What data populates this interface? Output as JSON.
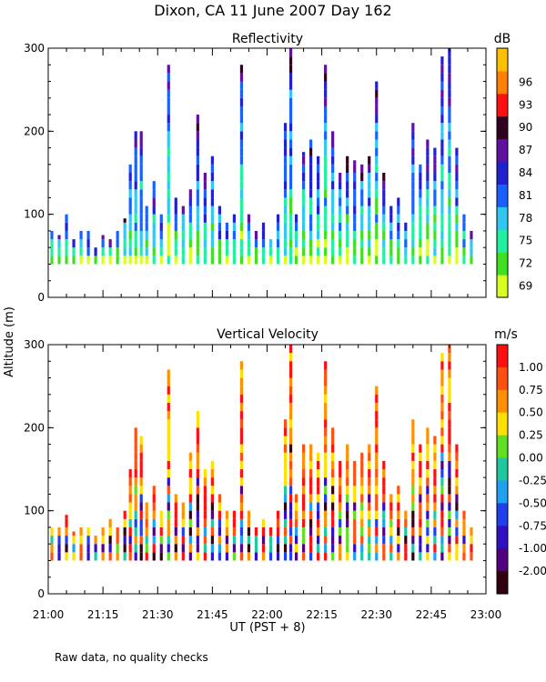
{
  "chart_data": {
    "title": "Dixon, CA 11 June 2007  Day 162",
    "ylabel": "Altitude (m)",
    "xlabel": "UT  (PST + 8)",
    "footnote": "Raw data, no quality checks",
    "x_ticks": [
      "21:00",
      "21:15",
      "21:30",
      "21:45",
      "22:00",
      "22:15",
      "22:30",
      "22:45",
      "23:00"
    ],
    "xlim": [
      0,
      120
    ],
    "panels": [
      {
        "type": "heatmap",
        "title": "Reflectivity",
        "unit": "dB",
        "ylim": [
          0,
          300
        ],
        "y_ticks": [
          "0",
          "100",
          "200",
          "300"
        ],
        "colorbar": {
          "labels": [
            "69",
            "72",
            "75",
            "78",
            "81",
            "84",
            "87",
            "90",
            "93",
            "96"
          ],
          "colors": [
            "#d8ff20",
            "#40e020",
            "#20f0a0",
            "#30c8f0",
            "#1860ff",
            "#2020d0",
            "#6010a0",
            "#300020",
            "#ff1010",
            "#ff8000",
            "#ffc000"
          ]
        },
        "columns": [
          {
            "t": 1,
            "h": [
              40,
              80
            ]
          },
          {
            "t": 3,
            "h": [
              40,
              75
            ]
          },
          {
            "t": 5,
            "h": [
              40,
              100
            ]
          },
          {
            "t": 7,
            "h": [
              40,
              70
            ]
          },
          {
            "t": 9,
            "h": [
              40,
              80
            ]
          },
          {
            "t": 11,
            "h": [
              40,
              80
            ]
          },
          {
            "t": 13,
            "h": [
              40,
              60
            ]
          },
          {
            "t": 15,
            "h": [
              40,
              75
            ]
          },
          {
            "t": 17,
            "h": [
              40,
              70
            ]
          },
          {
            "t": 19,
            "h": [
              40,
              80
            ]
          },
          {
            "t": 21,
            "h": [
              40,
              95
            ]
          },
          {
            "t": 22.5,
            "h": [
              40,
              160
            ]
          },
          {
            "t": 24,
            "h": [
              40,
              200
            ]
          },
          {
            "t": 25.5,
            "h": [
              40,
              200
            ]
          },
          {
            "t": 27,
            "h": [
              40,
              110
            ]
          },
          {
            "t": 29,
            "h": [
              40,
              140
            ]
          },
          {
            "t": 31,
            "h": [
              40,
              100
            ]
          },
          {
            "t": 33,
            "h": [
              40,
              280
            ]
          },
          {
            "t": 35,
            "h": [
              40,
              120
            ]
          },
          {
            "t": 37,
            "h": [
              40,
              110
            ]
          },
          {
            "t": 39,
            "h": [
              40,
              130
            ]
          },
          {
            "t": 41,
            "h": [
              40,
              220
            ]
          },
          {
            "t": 43,
            "h": [
              40,
              150
            ]
          },
          {
            "t": 45,
            "h": [
              40,
              170
            ]
          },
          {
            "t": 47,
            "h": [
              40,
              110
            ]
          },
          {
            "t": 49,
            "h": [
              40,
              90
            ]
          },
          {
            "t": 51,
            "h": [
              40,
              100
            ]
          },
          {
            "t": 53,
            "h": [
              40,
              280
            ]
          },
          {
            "t": 55,
            "h": [
              40,
              100
            ]
          },
          {
            "t": 57,
            "h": [
              40,
              80
            ]
          },
          {
            "t": 59,
            "h": [
              40,
              90
            ]
          },
          {
            "t": 61,
            "h": [
              40,
              70
            ]
          },
          {
            "t": 63,
            "h": [
              40,
              100
            ]
          },
          {
            "t": 65,
            "h": [
              40,
              210
            ]
          },
          {
            "t": 66.5,
            "h": [
              40,
              300
            ]
          },
          {
            "t": 68,
            "h": [
              40,
              100
            ]
          },
          {
            "t": 70,
            "h": [
              40,
              175
            ]
          },
          {
            "t": 72,
            "h": [
              40,
              190
            ]
          },
          {
            "t": 74,
            "h": [
              40,
              170
            ]
          },
          {
            "t": 76,
            "h": [
              40,
              280
            ]
          },
          {
            "t": 78,
            "h": [
              40,
              200
            ]
          },
          {
            "t": 80,
            "h": [
              40,
              150
            ]
          },
          {
            "t": 82,
            "h": [
              40,
              170
            ]
          },
          {
            "t": 84,
            "h": [
              40,
              165
            ]
          },
          {
            "t": 86,
            "h": [
              40,
              160
            ]
          },
          {
            "t": 88,
            "h": [
              40,
              170
            ]
          },
          {
            "t": 90,
            "h": [
              40,
              260
            ]
          },
          {
            "t": 92,
            "h": [
              40,
              150
            ]
          },
          {
            "t": 94,
            "h": [
              40,
              110
            ]
          },
          {
            "t": 96,
            "h": [
              40,
              120
            ]
          },
          {
            "t": 98,
            "h": [
              40,
              90
            ]
          },
          {
            "t": 100,
            "h": [
              40,
              210
            ]
          },
          {
            "t": 102,
            "h": [
              40,
              160
            ]
          },
          {
            "t": 104,
            "h": [
              40,
              190
            ]
          },
          {
            "t": 106,
            "h": [
              40,
              180
            ]
          },
          {
            "t": 108,
            "h": [
              40,
              290
            ]
          },
          {
            "t": 110,
            "h": [
              40,
              300
            ]
          },
          {
            "t": 112,
            "h": [
              40,
              180
            ]
          },
          {
            "t": 114,
            "h": [
              40,
              100
            ]
          },
          {
            "t": 116,
            "h": [
              40,
              80
            ]
          }
        ]
      },
      {
        "type": "heatmap",
        "title": "Vertical Velocity",
        "unit": "m/s",
        "ylim": [
          0,
          300
        ],
        "y_ticks": [
          "0",
          "100",
          "200",
          "300"
        ],
        "colorbar": {
          "labels": [
            "1.00",
            "0.75",
            "0.50",
            "0.25",
            "0.00",
            "-0.25",
            "-0.50",
            "-0.75",
            "-1.00",
            "-2.00"
          ],
          "colors": [
            "#ff1010",
            "#ff5010",
            "#ff9000",
            "#ffe000",
            "#60e020",
            "#20c8a0",
            "#20a0f0",
            "#2040f0",
            "#3010c0",
            "#500080",
            "#300010"
          ]
        },
        "columns": [
          {
            "t": 1,
            "h": [
              40,
              80
            ]
          },
          {
            "t": 3,
            "h": [
              40,
              80
            ]
          },
          {
            "t": 5,
            "h": [
              40,
              95
            ]
          },
          {
            "t": 7,
            "h": [
              40,
              75
            ]
          },
          {
            "t": 9,
            "h": [
              40,
              80
            ]
          },
          {
            "t": 11,
            "h": [
              40,
              80
            ]
          },
          {
            "t": 13,
            "h": [
              40,
              70
            ]
          },
          {
            "t": 15,
            "h": [
              40,
              80
            ]
          },
          {
            "t": 17,
            "h": [
              40,
              90
            ]
          },
          {
            "t": 19,
            "h": [
              40,
              80
            ]
          },
          {
            "t": 21,
            "h": [
              40,
              100
            ]
          },
          {
            "t": 22.5,
            "h": [
              40,
              150
            ]
          },
          {
            "t": 24,
            "h": [
              40,
              200
            ]
          },
          {
            "t": 25.5,
            "h": [
              40,
              190
            ]
          },
          {
            "t": 27,
            "h": [
              40,
              110
            ]
          },
          {
            "t": 29,
            "h": [
              40,
              130
            ]
          },
          {
            "t": 31,
            "h": [
              40,
              100
            ]
          },
          {
            "t": 33,
            "h": [
              40,
              270
            ]
          },
          {
            "t": 35,
            "h": [
              40,
              120
            ]
          },
          {
            "t": 37,
            "h": [
              40,
              110
            ]
          },
          {
            "t": 39,
            "h": [
              40,
              170
            ]
          },
          {
            "t": 41,
            "h": [
              40,
              220
            ]
          },
          {
            "t": 43,
            "h": [
              40,
              150
            ]
          },
          {
            "t": 45,
            "h": [
              40,
              160
            ]
          },
          {
            "t": 47,
            "h": [
              40,
              120
            ]
          },
          {
            "t": 49,
            "h": [
              40,
              100
            ]
          },
          {
            "t": 51,
            "h": [
              40,
              100
            ]
          },
          {
            "t": 53,
            "h": [
              40,
              280
            ]
          },
          {
            "t": 55,
            "h": [
              40,
              100
            ]
          },
          {
            "t": 57,
            "h": [
              40,
              80
            ]
          },
          {
            "t": 59,
            "h": [
              40,
              90
            ]
          },
          {
            "t": 61,
            "h": [
              40,
              80
            ]
          },
          {
            "t": 63,
            "h": [
              40,
              100
            ]
          },
          {
            "t": 65,
            "h": [
              40,
              210
            ]
          },
          {
            "t": 66.5,
            "h": [
              40,
              300
            ]
          },
          {
            "t": 68,
            "h": [
              40,
              120
            ]
          },
          {
            "t": 70,
            "h": [
              40,
              180
            ]
          },
          {
            "t": 72,
            "h": [
              40,
              180
            ]
          },
          {
            "t": 74,
            "h": [
              40,
              170
            ]
          },
          {
            "t": 76,
            "h": [
              40,
              280
            ]
          },
          {
            "t": 78,
            "h": [
              40,
              200
            ]
          },
          {
            "t": 80,
            "h": [
              40,
              160
            ]
          },
          {
            "t": 82,
            "h": [
              40,
              180
            ]
          },
          {
            "t": 84,
            "h": [
              40,
              160
            ]
          },
          {
            "t": 86,
            "h": [
              40,
              170
            ]
          },
          {
            "t": 88,
            "h": [
              40,
              180
            ]
          },
          {
            "t": 90,
            "h": [
              40,
              250
            ]
          },
          {
            "t": 92,
            "h": [
              40,
              160
            ]
          },
          {
            "t": 94,
            "h": [
              40,
              120
            ]
          },
          {
            "t": 96,
            "h": [
              40,
              130
            ]
          },
          {
            "t": 98,
            "h": [
              40,
              100
            ]
          },
          {
            "t": 100,
            "h": [
              40,
              210
            ]
          },
          {
            "t": 102,
            "h": [
              40,
              180
            ]
          },
          {
            "t": 104,
            "h": [
              40,
              200
            ]
          },
          {
            "t": 106,
            "h": [
              40,
              190
            ]
          },
          {
            "t": 108,
            "h": [
              40,
              290
            ]
          },
          {
            "t": 110,
            "h": [
              40,
              300
            ]
          },
          {
            "t": 112,
            "h": [
              40,
              180
            ]
          },
          {
            "t": 114,
            "h": [
              40,
              100
            ]
          },
          {
            "t": 116,
            "h": [
              40,
              80
            ]
          }
        ]
      }
    ]
  }
}
